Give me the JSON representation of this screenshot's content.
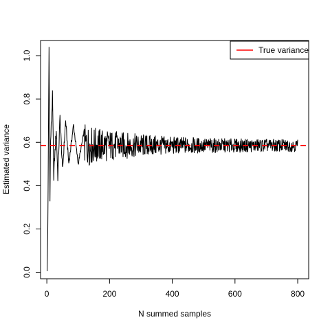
{
  "chart_data": {
    "type": "line",
    "title": "",
    "xlabel": "N summed samples",
    "ylabel": "Estimated variance",
    "xlim": [
      -20,
      835
    ],
    "ylim": [
      -0.03,
      1.07
    ],
    "x_ticks": [
      0,
      200,
      400,
      600,
      800
    ],
    "y_ticks": [
      0.0,
      0.2,
      0.4,
      0.6,
      0.8,
      1.0
    ],
    "x_tick_labels": [
      "0",
      "200",
      "400",
      "600",
      "800"
    ],
    "y_tick_labels": [
      "0.0",
      "0.2",
      "0.4",
      "0.6",
      "0.8",
      "1.0"
    ],
    "grid": false,
    "legend_position": "top-right",
    "series": [
      {
        "name": "",
        "color": "#000000",
        "style": "solid",
        "n_start": 1,
        "n_end": 800,
        "target": 0.585,
        "anchors": [
          [
            1,
            0.005
          ],
          [
            3,
            0.19
          ],
          [
            5,
            0.6
          ],
          [
            7,
            1.04
          ],
          [
            8,
            0.79
          ],
          [
            10,
            0.36
          ],
          [
            12,
            0.6
          ],
          [
            18,
            0.81
          ],
          [
            22,
            0.45
          ],
          [
            30,
            0.66
          ],
          [
            35,
            0.44
          ],
          [
            42,
            0.72
          ],
          [
            50,
            0.47
          ],
          [
            60,
            0.7
          ],
          [
            70,
            0.5
          ],
          [
            85,
            0.68
          ],
          [
            100,
            0.5
          ],
          [
            120,
            0.66
          ]
        ]
      },
      {
        "name": "True variance",
        "color": "#ff0000",
        "style": "dashed",
        "value": 0.585
      }
    ]
  }
}
